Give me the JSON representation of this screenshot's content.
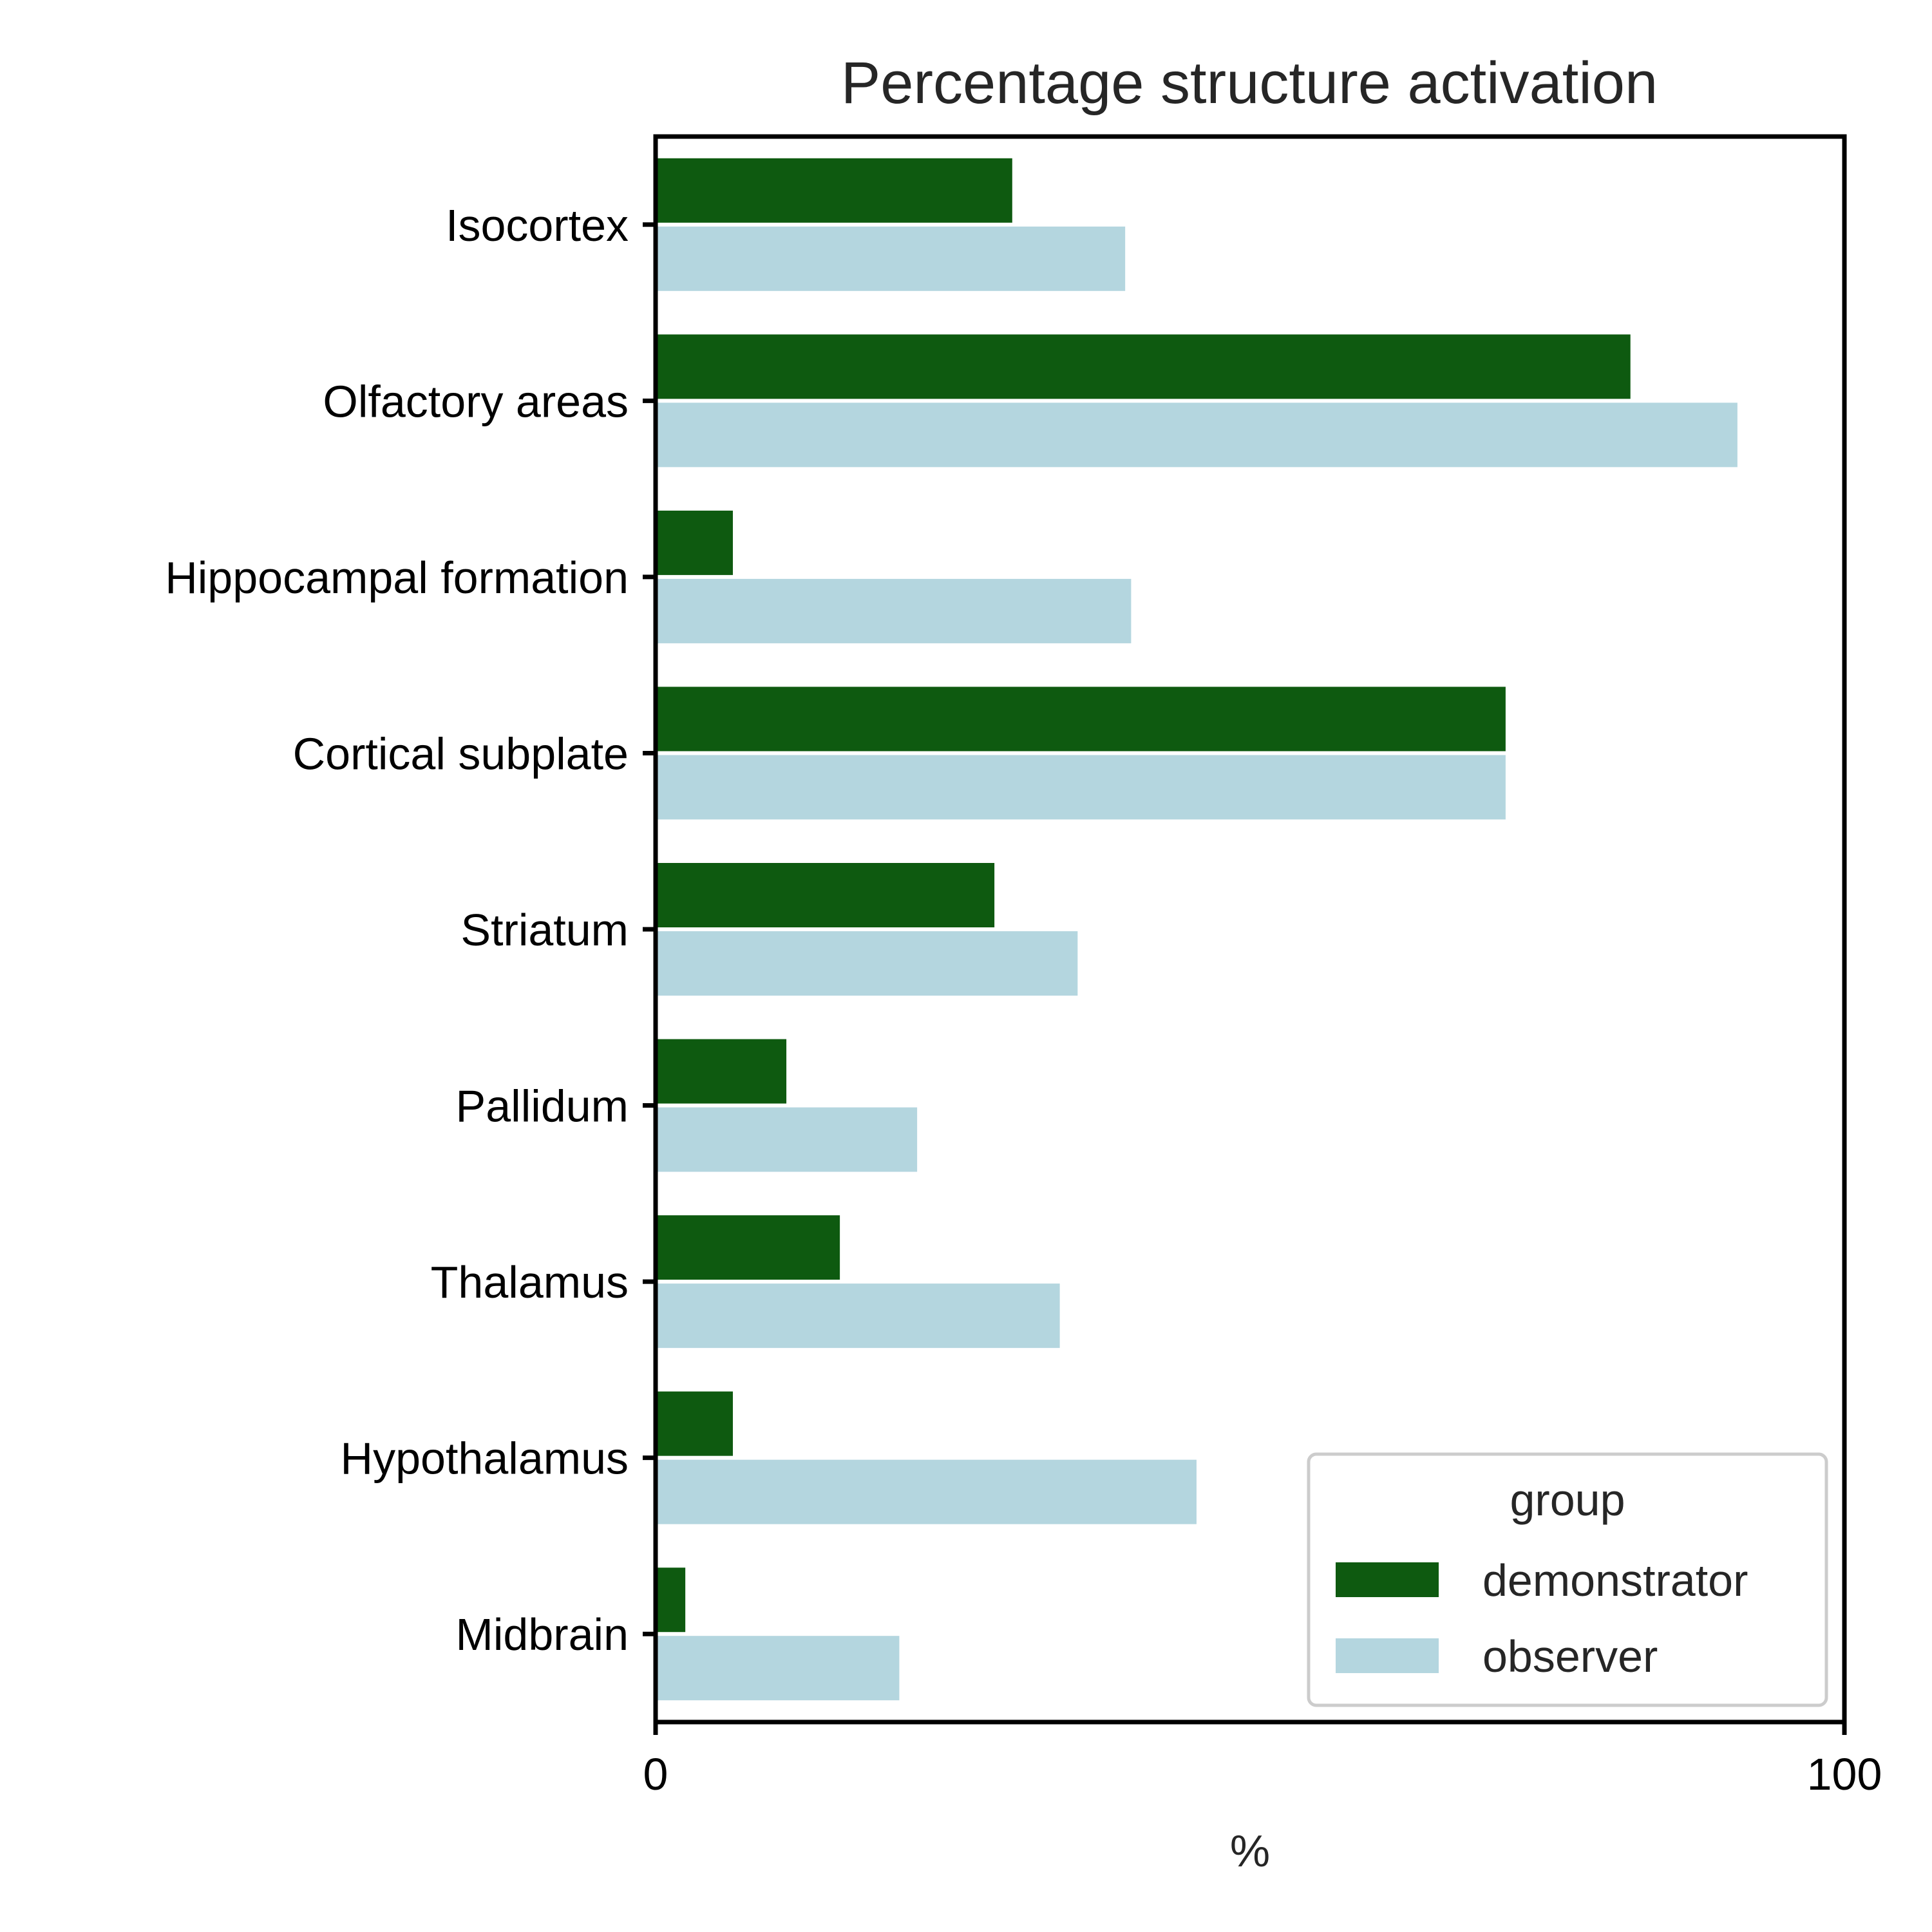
{
  "chart_data": {
    "type": "bar",
    "orientation": "horizontal",
    "title": "Percentage structure activation",
    "xlabel": "%",
    "ylabel": "",
    "xlim": [
      0,
      100
    ],
    "xticks": [
      "0",
      "100"
    ],
    "categories": [
      "Isocortex",
      "Olfactory areas",
      "Hippocampal formation",
      "Cortical subplate",
      "Striatum",
      "Pallidum",
      "Thalamus",
      "Hypothalamus",
      "Midbrain"
    ],
    "series": [
      {
        "name": "demonstrator",
        "color": "#0e5a10",
        "values": [
          30,
          82,
          6.5,
          71.5,
          28.5,
          11,
          15.5,
          6.5,
          2.5
        ]
      },
      {
        "name": "observer",
        "color": "#b4d6df",
        "values": [
          39.5,
          91,
          40,
          71.5,
          35.5,
          22,
          34,
          45.5,
          20.5
        ]
      }
    ],
    "legend": {
      "title": "group",
      "position": "lower-right"
    },
    "grid": false
  }
}
